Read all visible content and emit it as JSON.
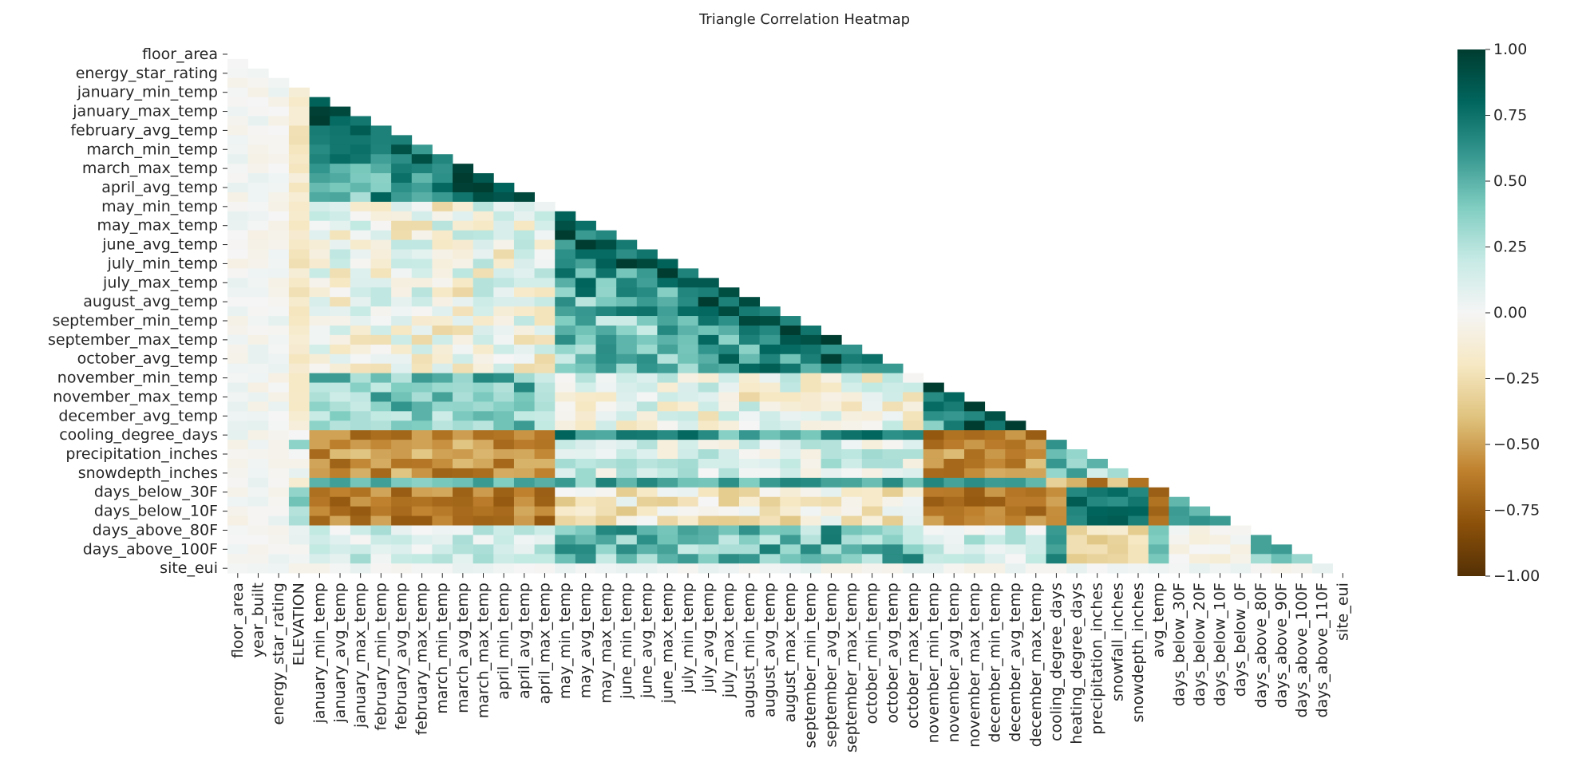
{
  "chart_data": {
    "type": "heatmap",
    "title": "Triangle Correlation Heatmap",
    "mask": "upper-triangle",
    "variables": [
      "floor_area",
      "year_built",
      "energy_star_rating",
      "ELEVATION",
      "january_min_temp",
      "january_avg_temp",
      "january_max_temp",
      "february_min_temp",
      "february_avg_temp",
      "february_max_temp",
      "march_min_temp",
      "march_avg_temp",
      "march_max_temp",
      "april_min_temp",
      "april_avg_temp",
      "april_max_temp",
      "may_min_temp",
      "may_avg_temp",
      "may_max_temp",
      "june_min_temp",
      "june_avg_temp",
      "june_max_temp",
      "july_min_temp",
      "july_avg_temp",
      "july_max_temp",
      "august_min_temp",
      "august_avg_temp",
      "august_max_temp",
      "september_min_temp",
      "september_avg_temp",
      "september_max_temp",
      "october_min_temp",
      "october_avg_temp",
      "october_max_temp",
      "november_min_temp",
      "november_avg_temp",
      "november_max_temp",
      "december_min_temp",
      "december_avg_temp",
      "december_max_temp",
      "cooling_degree_days",
      "heating_degree_days",
      "precipitation_inches",
      "snowfall_inches",
      "snowdepth_inches",
      "avg_temp",
      "days_below_30F",
      "days_below_20F",
      "days_below_10F",
      "days_below_0F",
      "days_above_80F",
      "days_above_90F",
      "days_above_100F",
      "days_above_110F",
      "site_eui"
    ],
    "row_labels": [
      "floor_area",
      "energy_star_rating",
      "january_min_temp",
      "january_max_temp",
      "february_avg_temp",
      "march_min_temp",
      "march_max_temp",
      "april_avg_temp",
      "may_min_temp",
      "may_max_temp",
      "june_avg_temp",
      "july_min_temp",
      "july_max_temp",
      "august_avg_temp",
      "september_min_temp",
      "september_max_temp",
      "october_avg_temp",
      "november_min_temp",
      "november_max_temp",
      "december_avg_temp",
      "cooling_degree_days",
      "precipitation_inches",
      "snowdepth_inches",
      "days_below_30F",
      "days_below_10F",
      "days_above_80F",
      "days_above_100F",
      "site_eui"
    ],
    "col_labels": [
      "floor_area",
      "year_built",
      "energy_star_rating",
      "ELEVATION",
      "january_min_temp",
      "january_avg_temp",
      "january_max_temp",
      "february_min_temp",
      "february_avg_temp",
      "february_max_temp",
      "march_min_temp",
      "march_avg_temp",
      "march_max_temp",
      "april_min_temp",
      "april_avg_temp",
      "april_max_temp",
      "may_min_temp",
      "may_avg_temp",
      "may_max_temp",
      "june_min_temp",
      "june_avg_temp",
      "june_max_temp",
      "july_min_temp",
      "july_avg_temp",
      "july_max_temp",
      "august_min_temp",
      "august_avg_temp",
      "august_max_temp",
      "september_min_temp",
      "september_avg_temp",
      "september_max_temp",
      "october_min_temp",
      "october_avg_temp",
      "october_max_temp",
      "november_min_temp",
      "november_avg_temp",
      "november_max_temp",
      "december_min_temp",
      "december_avg_temp",
      "december_max_temp",
      "cooling_degree_days",
      "heating_degree_days",
      "precipitation_inches",
      "snowfall_inches",
      "snowdepth_inches",
      "avg_temp",
      "days_below_30F",
      "days_below_20F",
      "days_below_10F",
      "days_below_0F",
      "days_above_80F",
      "days_above_90F",
      "days_above_100F",
      "days_above_110F",
      "site_eui"
    ],
    "vmin": -1.0,
    "vmax": 1.0,
    "colormap": "BrBG",
    "colormap_stops": [
      "#543005",
      "#8c510a",
      "#bf812d",
      "#dfc27d",
      "#f6e8c3",
      "#f5f5f5",
      "#c7eae5",
      "#80cdc1",
      "#35978f",
      "#01665e",
      "#003c30"
    ],
    "colorbar_ticks": [
      "1.00",
      "0.75",
      "0.50",
      "0.25",
      "0.00",
      "−0.25",
      "−0.50",
      "−0.75",
      "−1.00"
    ],
    "colorbar_values": [
      1.0,
      0.75,
      0.5,
      0.25,
      0.0,
      -0.25,
      -0.5,
      -0.75,
      -1.0
    ],
    "legend": "right",
    "grid": false,
    "value_source": "approximate per-cell correlations estimated from cell colour, lower triangle only",
    "cell_values": {
      "seed": 20240519
    }
  }
}
